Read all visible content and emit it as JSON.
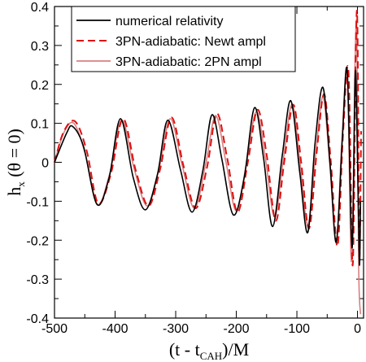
{
  "chart_data": {
    "type": "line",
    "title": "",
    "xlabel": "(t - t",
    "xlabel_sub": "CAH",
    "xlabel_tail": ")/M",
    "ylabel": "h",
    "ylabel_sub": "x",
    "ylabel_tail": " (θ = 0)",
    "xlim": [
      -500,
      10
    ],
    "ylim": [
      -0.4,
      0.4
    ],
    "xticks": [
      -500,
      -400,
      -300,
      -200,
      -100,
      0
    ],
    "xtick_labels": [
      "-500",
      "-400",
      "-300",
      "-200",
      "-100",
      "0"
    ],
    "yticks": [
      -0.4,
      -0.3,
      -0.2,
      -0.1,
      0,
      0.1,
      0.2,
      0.3,
      0.4
    ],
    "ytick_labels": [
      "-0.4",
      "-0.3",
      "-0.2",
      "-0.1",
      "0",
      "0.1",
      "0.2",
      "0.3",
      "0.4"
    ],
    "grid": false,
    "legend_position": "top-left",
    "series": [
      {
        "name": "numerical relativity",
        "color": "#000000",
        "style": "solid",
        "x": [
          -500,
          -480,
          -470,
          -452,
          -430,
          -410,
          -391,
          -370,
          -350,
          -330,
          -313,
          -292,
          -273,
          -255,
          -240,
          -224,
          -205,
          -187,
          -170,
          -155,
          -140,
          -124,
          -110,
          -95,
          -82,
          -70,
          -57,
          -45,
          -35,
          -25,
          -17,
          -9,
          -4,
          -1,
          3,
          5
        ],
        "y": [
          0,
          0.075,
          0.092,
          0.04,
          -0.108,
          -0.04,
          0.112,
          -0.04,
          -0.122,
          -0.03,
          0.108,
          -0.02,
          -0.128,
          -0.02,
          0.122,
          0.01,
          -0.135,
          -0.04,
          0.14,
          0.01,
          -0.165,
          0.02,
          0.158,
          -0.03,
          -0.18,
          0.05,
          0.192,
          -0.01,
          -0.205,
          0.06,
          0.235,
          -0.22,
          0.22,
          0.1,
          -0.26,
          -0.1
        ]
      },
      {
        "name": "3PN-adiabatic: Newt ampl",
        "color": "#e01010",
        "style": "dashed",
        "x": [
          -500,
          -485,
          -466,
          -447,
          -428,
          -407,
          -387,
          -366,
          -345,
          -326,
          -307,
          -287,
          -267,
          -248,
          -232,
          -215,
          -198,
          -181,
          -165,
          -150,
          -135,
          -121,
          -106,
          -93,
          -80,
          -67,
          -55,
          -44,
          -33,
          -24,
          -15,
          -8,
          -3,
          0,
          3,
          6
        ],
        "y": [
          0,
          0.078,
          0.105,
          0.03,
          -0.105,
          -0.03,
          0.112,
          -0.02,
          -0.112,
          -0.02,
          0.115,
          -0.01,
          -0.118,
          -0.01,
          0.125,
          0.01,
          -0.128,
          0.0,
          0.135,
          0.02,
          -0.15,
          0.0,
          0.148,
          0.0,
          -0.17,
          0.03,
          0.175,
          0.0,
          -0.215,
          0.07,
          0.235,
          -0.265,
          0.28,
          0.345,
          -0.24,
          0.08
        ]
      },
      {
        "name": "3PN-adiabatic: 2PN ampl",
        "color": "#d98080",
        "style": "solid",
        "x": [
          -500,
          -485,
          -468,
          -449,
          -429,
          -409,
          -389,
          -368,
          -347,
          -328,
          -309,
          -289,
          -269,
          -250,
          -234,
          -217,
          -200,
          -183,
          -167,
          -152,
          -137,
          -123,
          -108,
          -95,
          -82,
          -69,
          -57,
          -46,
          -35,
          -26,
          -17,
          -10,
          -4,
          -1,
          2,
          5
        ],
        "y": [
          0,
          0.075,
          0.1,
          0.02,
          -0.108,
          -0.03,
          0.108,
          -0.02,
          -0.112,
          -0.02,
          0.112,
          -0.01,
          -0.118,
          0.0,
          0.12,
          0.0,
          -0.125,
          0.0,
          0.13,
          0.01,
          -0.14,
          0.0,
          0.15,
          0.0,
          -0.16,
          0.02,
          0.168,
          0.0,
          -0.205,
          0.05,
          0.225,
          -0.255,
          0.26,
          0.32,
          -0.27,
          -0.39
        ]
      }
    ]
  }
}
